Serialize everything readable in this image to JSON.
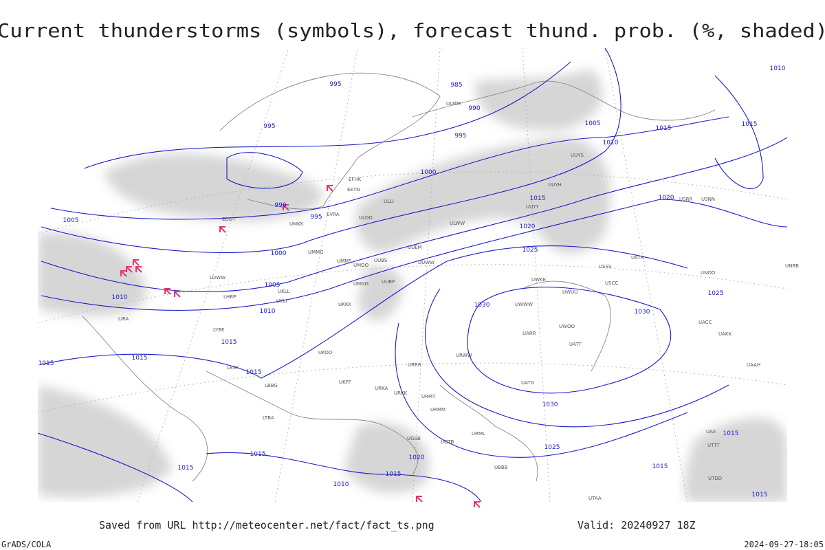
{
  "title": "Current thunderstorms (symbols), forecast thund. prob. (%, shaded)",
  "footer": {
    "saved_from": "Saved from URL http://meteocenter.net/fact/fact_ts.png",
    "valid": "Valid: 20240927 18Z",
    "credit": "GrADS/COLA",
    "timestamp": "2024-09-27-18:05"
  },
  "isobar_labels": [
    995,
    985,
    990,
    995,
    1005,
    1010,
    1015,
    1015,
    1010,
    995,
    1000,
    1015,
    1020,
    990,
    995,
    1005,
    1020,
    1000,
    1025,
    1005,
    1010,
    1010,
    1030,
    1030,
    1025,
    1015,
    1015,
    1015,
    1015,
    1030,
    1025,
    1015,
    1015,
    1020,
    1015,
    1010,
    1015,
    1015,
    1015
  ],
  "stations": [
    "EFHK",
    "EETN",
    "ULLI",
    "ULOO",
    "EVRA",
    "UMKK",
    "EDDT",
    "UMMG",
    "UMMS",
    "UMOO",
    "UUBS",
    "UUEM",
    "UUWW",
    "ULWW",
    "UUYY",
    "UUYH",
    "UUYS",
    "ULMM",
    "UMGG",
    "UUBP",
    "UKLL",
    "UKLI",
    "UKKK",
    "LHBP",
    "LOWW",
    "LIRA",
    "LYBE",
    "LBSF",
    "LBBG",
    "LTBA",
    "UKOO",
    "UKFF",
    "URRR",
    "URWW",
    "UWWW",
    "UWKE",
    "UWUU",
    "UWOO",
    "UATT",
    "UARR",
    "UATG",
    "UACC",
    "UAKK",
    "USSS",
    "USCC",
    "USTR",
    "USRR",
    "USNN",
    "UNOO",
    "UNBB",
    "UAAH",
    "UAII",
    "UTTT",
    "UTDD",
    "UTAA",
    "UGTB",
    "UGSB",
    "UBBB",
    "URML",
    "URMM",
    "URMT",
    "URKK",
    "URKA"
  ]
}
